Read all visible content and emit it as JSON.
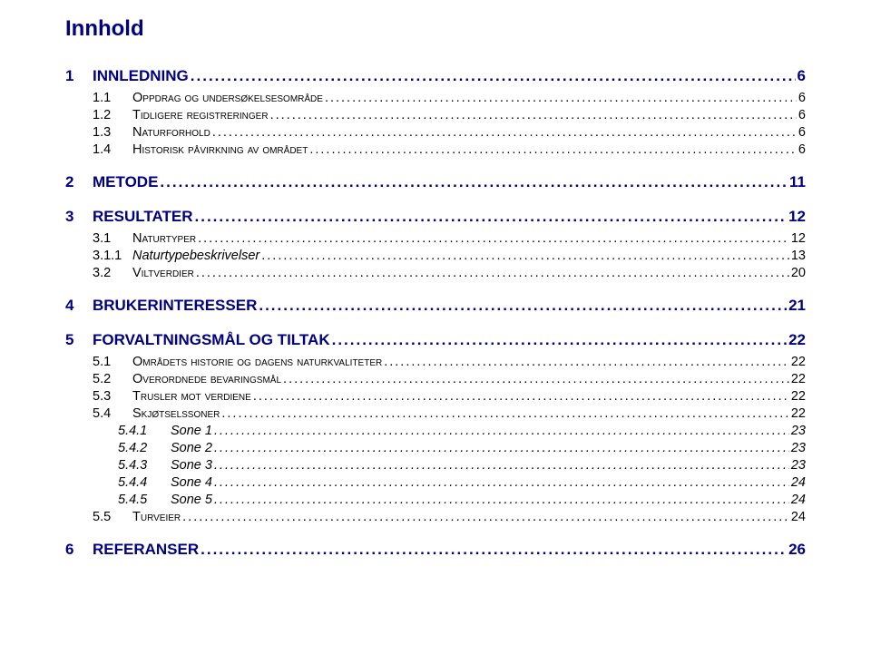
{
  "colors": {
    "heading": "#000080",
    "text": "#000000",
    "background": "#ffffff"
  },
  "typography": {
    "font_family": "Verdana",
    "title_fontsize": 24,
    "l1_fontsize": 17,
    "l2_fontsize": 14.5,
    "l3_fontsize": 14.5
  },
  "title": "Innhold",
  "toc": {
    "s1": {
      "num": "1",
      "label": "INNLEDNING",
      "page": "6"
    },
    "s1_1": {
      "num": "1.1",
      "label": "Oppdrag og undersøkelsesområde",
      "page": "6"
    },
    "s1_2": {
      "num": "1.2",
      "label": "Tidligere registreringer",
      "page": "6"
    },
    "s1_3": {
      "num": "1.3",
      "label": "Naturforhold",
      "page": "6"
    },
    "s1_4": {
      "num": "1.4",
      "label": "Historisk påvirkning av området",
      "page": "6"
    },
    "s2": {
      "num": "2",
      "label": "METODE",
      "page": "11"
    },
    "s3": {
      "num": "3",
      "label": "RESULTATER",
      "page": "12"
    },
    "s3_1": {
      "num": "3.1",
      "label": "Naturtyper",
      "page": "12"
    },
    "s3_1_1": {
      "num": "3.1.1",
      "label": "Naturtypebeskrivelser",
      "page": "13"
    },
    "s3_2": {
      "num": "3.2",
      "label": "Viltverdier",
      "page": "20"
    },
    "s4": {
      "num": "4",
      "label": "BRUKERINTERESSER",
      "page": "21"
    },
    "s5": {
      "num": "5",
      "label": "FORVALTNINGSMÅL OG TILTAK",
      "page": "22"
    },
    "s5_1": {
      "num": "5.1",
      "label": "Områdets historie og dagens naturkvaliteter",
      "page": "22"
    },
    "s5_2": {
      "num": "5.2",
      "label": "Overordnede bevaringsmål",
      "page": "22"
    },
    "s5_3": {
      "num": "5.3",
      "label": "Trusler mot verdiene",
      "page": "22"
    },
    "s5_4": {
      "num": "5.4",
      "label": "Skjøtselssoner",
      "page": "22"
    },
    "s5_4_1": {
      "num": "5.4.1",
      "label": "Sone 1",
      "page": "23"
    },
    "s5_4_2": {
      "num": "5.4.2",
      "label": "Sone 2",
      "page": "23"
    },
    "s5_4_3": {
      "num": "5.4.3",
      "label": "Sone 3",
      "page": "23"
    },
    "s5_4_4": {
      "num": "5.4.4",
      "label": "Sone 4",
      "page": "24"
    },
    "s5_4_5": {
      "num": "5.4.5",
      "label": "Sone 5",
      "page": "24"
    },
    "s5_5": {
      "num": "5.5",
      "label": "Turveier",
      "page": "24"
    },
    "s6": {
      "num": "6",
      "label": "REFERANSER",
      "page": "26"
    }
  }
}
